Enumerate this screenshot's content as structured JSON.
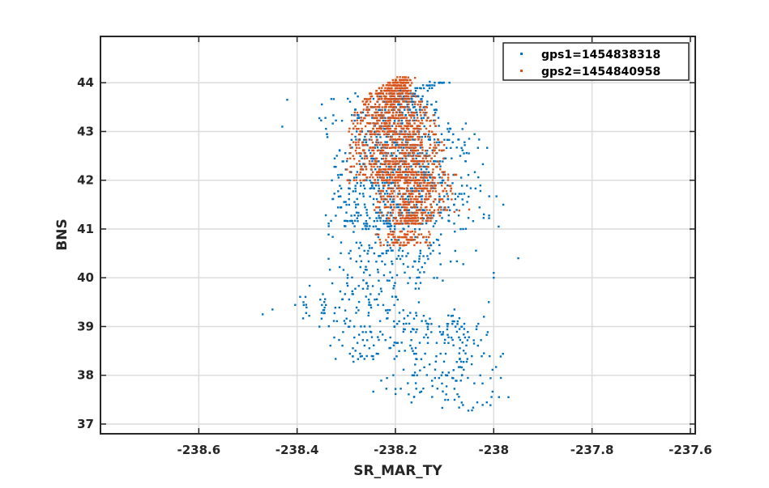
{
  "chart_data": {
    "type": "scatter",
    "title": "",
    "xlabel": "SR_MAR_TY",
    "ylabel": "BNS",
    "xlim": [
      -238.8,
      -237.59
    ],
    "ylim": [
      36.8,
      44.95
    ],
    "xticks": [
      -238.6,
      -238.4,
      -238.2,
      -238.0,
      -237.8,
      -237.6
    ],
    "xtick_labels": [
      "-238.6",
      "-238.4",
      "-238.2",
      "-238",
      "-237.8",
      "-237.6"
    ],
    "yticks": [
      37,
      38,
      39,
      40,
      41,
      42,
      43,
      44
    ],
    "ytick_labels": [
      "37",
      "38",
      "39",
      "40",
      "41",
      "42",
      "43",
      "44"
    ],
    "grid": true,
    "legend_position": "top-right",
    "series": [
      {
        "name": "gps1=1454838318",
        "color": "#0072BD",
        "clusters": [
          {
            "x": -238.12,
            "y": 39.0,
            "sx": 0.14,
            "sy": 1.3,
            "n": 700,
            "shape": [
              [
                38.3,
                -238.34,
                -238.12
              ],
              [
                38.85,
                -238.34,
                -238.05
              ],
              [
                39.3,
                -238.43,
                -238.17
              ],
              [
                40.0,
                -238.36,
                -238.09
              ],
              [
                40.6,
                -238.34,
                -238.02
              ],
              [
                41.5,
                -238.34,
                -237.98
              ],
              [
                42.5,
                -238.35,
                -238.0
              ],
              [
                43.2,
                -238.37,
                -238.03
              ],
              [
                43.7,
                -238.35,
                -238.13
              ],
              [
                44.0,
                -238.13,
                -238.08
              ]
            ]
          },
          {
            "x": -238.08,
            "y": 37.8,
            "sx": 0.09,
            "sy": 0.45,
            "n": 170,
            "shape": [
              [
                37.3,
                -238.11,
                -237.96
              ],
              [
                37.7,
                -238.28,
                -237.97
              ],
              [
                38.1,
                -238.2,
                -237.98
              ],
              [
                38.55,
                -238.17,
                -237.98
              ],
              [
                39.0,
                -238.17,
                -238.02
              ],
              [
                39.3,
                -238.22,
                -238.04
              ]
            ]
          },
          {
            "x": -238.2,
            "y": 42.3,
            "sx": 0.09,
            "sy": 0.8,
            "n": 620,
            "shape": [
              [
                41.0,
                -238.35,
                -238.1
              ],
              [
                41.8,
                -238.34,
                -238.05
              ],
              [
                42.6,
                -238.32,
                -238.05
              ],
              [
                43.3,
                -238.28,
                -238.1
              ],
              [
                43.8,
                -238.22,
                -238.15
              ]
            ]
          }
        ],
        "extra_points": [
          [
            -238.43,
            43.1
          ],
          [
            -238.42,
            43.65
          ],
          [
            -238.47,
            39.25
          ],
          [
            -238.45,
            39.35
          ],
          [
            -237.95,
            40.4
          ],
          [
            -238.13,
            44.02
          ],
          [
            -238.09,
            44.0
          ],
          [
            -238.08,
            39.35
          ],
          [
            -238.0,
            40.0
          ],
          [
            -237.99,
            41.05
          ],
          [
            -238.06,
            38.95
          ],
          [
            -238.02,
            38.45
          ],
          [
            -237.97,
            37.55
          ],
          [
            -238.15,
            38.1
          ],
          [
            -238.15,
            37.65
          ],
          [
            -238.07,
            38.45
          ],
          [
            -238.0,
            40.1
          ],
          [
            -238.01,
            39.5
          ],
          [
            -238.02,
            39.2
          ],
          [
            -238.04,
            38.65
          ],
          [
            -238.11,
            40.5
          ],
          [
            -238.02,
            41.3
          ],
          [
            -238.05,
            42.85
          ],
          [
            -238.12,
            44.0
          ],
          [
            -238.14,
            40.3
          ]
        ]
      },
      {
        "name": "gps2=1454840958",
        "color": "#D95319",
        "clusters": [
          {
            "x": -238.22,
            "y": 42.9,
            "sx": 0.05,
            "sy": 0.55,
            "n": 1100,
            "shape": [
              [
                41.95,
                -238.3,
                -238.12
              ],
              [
                42.4,
                -238.3,
                -238.1
              ],
              [
                42.8,
                -238.3,
                -238.1
              ],
              [
                43.3,
                -238.3,
                -238.12
              ],
              [
                43.8,
                -238.25,
                -238.16
              ],
              [
                44.1,
                -238.2,
                -238.17
              ]
            ]
          },
          {
            "x": -238.17,
            "y": 41.75,
            "sx": 0.04,
            "sy": 0.35,
            "n": 450,
            "shape": [
              [
                41.1,
                -238.21,
                -238.13
              ],
              [
                41.45,
                -238.25,
                -238.08
              ],
              [
                41.8,
                -238.24,
                -238.08
              ],
              [
                42.2,
                -238.25,
                -238.07
              ]
            ]
          },
          {
            "x": -238.18,
            "y": 40.8,
            "sx": 0.04,
            "sy": 0.08,
            "n": 90,
            "shape": [
              [
                40.65,
                -238.24,
                -238.13
              ],
              [
                40.95,
                -238.24,
                -238.12
              ]
            ]
          }
        ],
        "extra_points": [
          [
            -238.07,
            41.38
          ],
          [
            -238.08,
            41.35
          ],
          [
            -238.05,
            41.4
          ],
          [
            -238.11,
            41.6
          ],
          [
            -238.13,
            40.72
          ],
          [
            -238.16,
            44.1
          ],
          [
            -238.2,
            44.05
          ]
        ]
      }
    ]
  }
}
